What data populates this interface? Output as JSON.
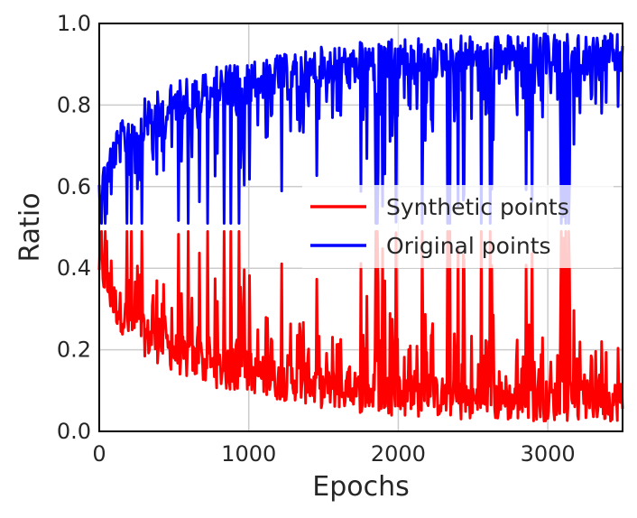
{
  "chart_data": {
    "type": "line",
    "title": "",
    "xlabel": "Epochs",
    "ylabel": "Ratio",
    "xlim": [
      0,
      3500
    ],
    "ylim": [
      0.0,
      1.0
    ],
    "x_ticks": [
      0,
      1000,
      2000,
      3000
    ],
    "x_tick_labels": [
      "0",
      "1000",
      "2000",
      "3000"
    ],
    "y_ticks": [
      0.0,
      0.2,
      0.4,
      0.6,
      0.8,
      1.0
    ],
    "y_tick_labels": [
      "0.0",
      "0.2",
      "0.4",
      "0.6",
      "0.8",
      "1.0"
    ],
    "grid": true,
    "legend_position": "center-right",
    "x": [
      0,
      100,
      200,
      300,
      400,
      500,
      600,
      700,
      800,
      900,
      1000,
      1100,
      1200,
      1300,
      1400,
      1500,
      1600,
      1700,
      1800,
      1900,
      2000,
      2100,
      2200,
      2300,
      2400,
      2500,
      2600,
      2700,
      2800,
      2900,
      3000,
      3100,
      3200,
      3300,
      3400,
      3500
    ],
    "series": [
      {
        "name": "Synthetic points",
        "color": "#ff0000",
        "values": [
          0.4,
          0.3,
          0.25,
          0.22,
          0.2,
          0.18,
          0.16,
          0.15,
          0.14,
          0.13,
          0.13,
          0.12,
          0.11,
          0.11,
          0.1,
          0.09,
          0.09,
          0.08,
          0.08,
          0.08,
          0.07,
          0.07,
          0.07,
          0.07,
          0.06,
          0.06,
          0.06,
          0.06,
          0.06,
          0.06,
          0.06,
          0.06,
          0.06,
          0.06,
          0.06,
          0.06
        ]
      },
      {
        "name": "Original points",
        "color": "#0000ff",
        "values": [
          0.6,
          0.7,
          0.75,
          0.78,
          0.8,
          0.82,
          0.84,
          0.85,
          0.86,
          0.87,
          0.87,
          0.88,
          0.89,
          0.89,
          0.9,
          0.91,
          0.91,
          0.92,
          0.92,
          0.92,
          0.93,
          0.93,
          0.93,
          0.93,
          0.94,
          0.94,
          0.94,
          0.94,
          0.94,
          0.94,
          0.94,
          0.94,
          0.94,
          0.94,
          0.94,
          0.94
        ]
      }
    ]
  }
}
